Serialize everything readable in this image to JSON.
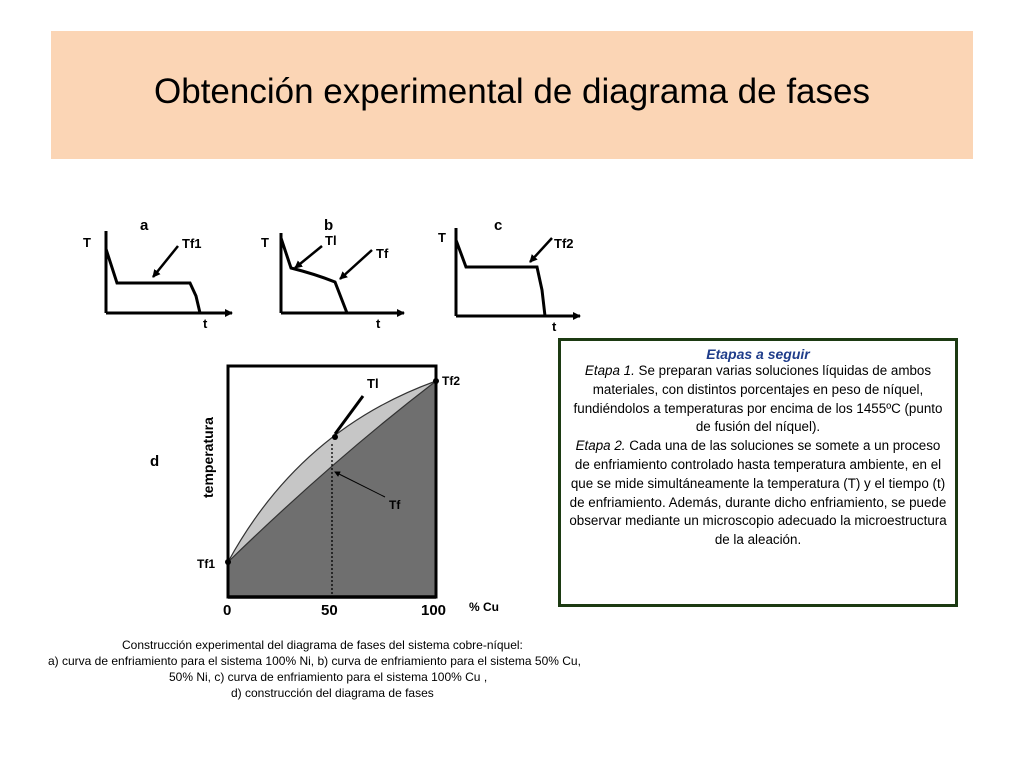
{
  "slide": {
    "title": "Obtención experimental de  diagrama de fases",
    "title_band_color": "#fbd5b5"
  },
  "panels": {
    "a": {
      "letter": "a",
      "y_axis": "T",
      "x_axis": "t",
      "marker": "Tf1"
    },
    "b": {
      "letter": "b",
      "y_axis": "T",
      "x_axis": "t",
      "marker_liquidus": "Tl",
      "marker_solidus": "Tf"
    },
    "c": {
      "letter": "c",
      "y_axis": "T",
      "x_axis": "t",
      "marker": "Tf2"
    }
  },
  "phase_diagram": {
    "letter": "d",
    "y_label": "temperatura",
    "x_label": "% Cu",
    "x_ticks": [
      "0",
      "50",
      "100"
    ],
    "left_marker": "Tf1",
    "right_marker": "Tf2",
    "liquidus_label": "Tl",
    "solidus_label": "Tf",
    "colors": {
      "lens": "#c6c6c6",
      "solid_region": "#6f6f6f"
    }
  },
  "steps": {
    "title": "Etapas a seguir",
    "stage1_label": "Etapa 1.",
    "stage1_text": " Se preparan varias soluciones líquidas de ambos materiales, con distintos porcentajes en peso de níquel, fundiéndolos a temperaturas por encima de los 1455ºC (punto de fusión del níquel).",
    "stage2_label": "Etapa 2.",
    "stage2_text": " Cada una de las soluciones se somete a un proceso de enfriamiento controlado hasta temperatura ambiente, en el que se mide simultáneamente la temperatura (T)  y el tiempo (t) de enfriamiento. Además, durante dicho enfriamiento, se puede observar mediante un microscopio adecuado la microestructura de la aleación.",
    "border_color": "#1c3a12",
    "title_color": "#1f3d8a"
  },
  "caption": {
    "line1": "Construcción experimental del diagrama de fases del sistema cobre-níquel:",
    "line2": "a) curva de enfriamiento para el sistema 100% Ni, b) curva de enfriamiento para el sistema 50% Cu,",
    "line3": "50% Ni, c) curva de enfriamiento para el sistema 100% Cu ,",
    "line4": "d) construcción del diagrama de fases"
  }
}
